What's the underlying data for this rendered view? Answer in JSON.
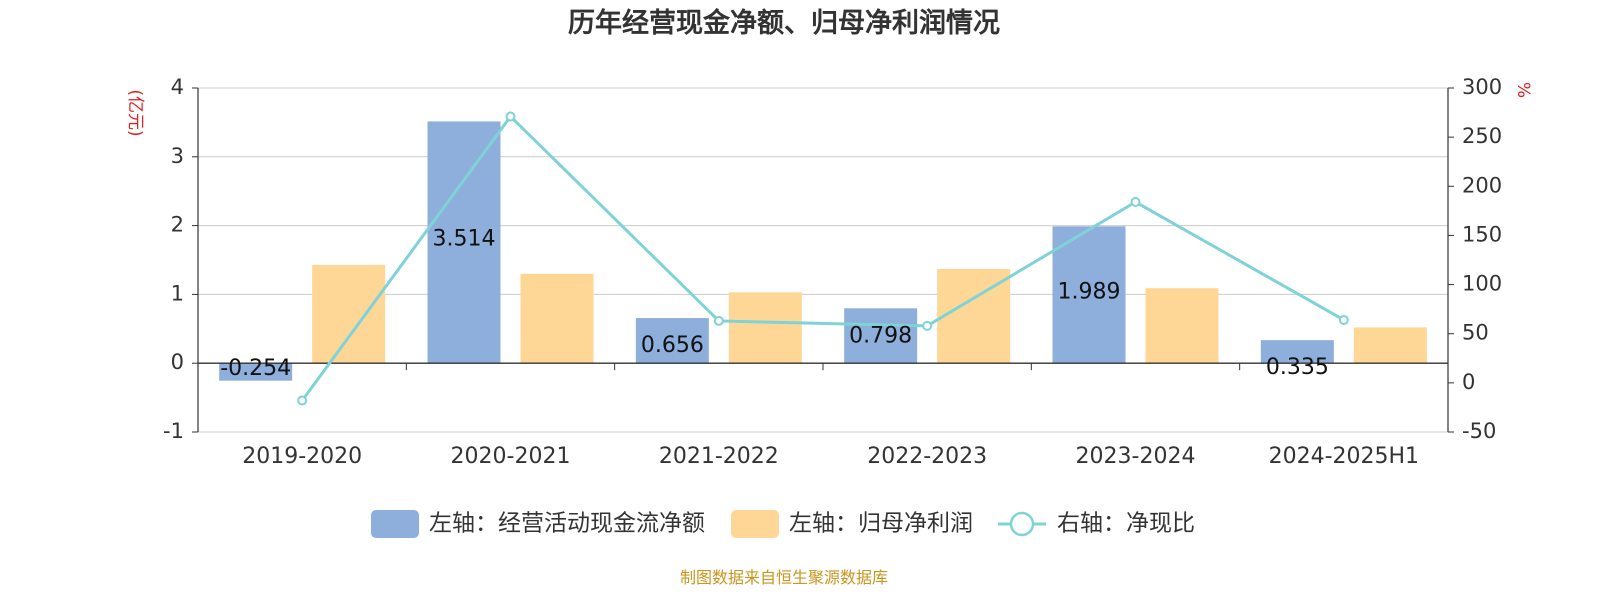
{
  "title": "历年经营现金净额、归母净利润情况",
  "source": "制图数据来自恒生聚源数据库",
  "colors": {
    "cashflow": "#8eaedb",
    "profit": "#fed797",
    "ratio": "#7fd3d7",
    "unit": "#e02020",
    "source": "#c8961e"
  },
  "chart_data": {
    "type": "bar",
    "title": "历年经营现金净额、归母净利润情况",
    "categories": [
      "2019-2020",
      "2020-2021",
      "2021-2022",
      "2022-2023",
      "2023-2024",
      "2024-2025H1"
    ],
    "left_axis": {
      "unit": "(亿元)",
      "ylim": [
        -1,
        4
      ],
      "ticks": [
        -1,
        0,
        1,
        2,
        3,
        4
      ]
    },
    "right_axis": {
      "unit": "%",
      "ylim": [
        -50,
        300
      ],
      "ticks": [
        -50,
        0,
        50,
        100,
        150,
        200,
        250,
        300
      ]
    },
    "series": [
      {
        "name": "左轴：经营活动现金流净额",
        "type": "bar",
        "axis": "left",
        "values": [
          -0.254,
          3.514,
          0.656,
          0.798,
          1.989,
          0.335
        ],
        "labels": [
          "-0.254",
          "3.514",
          "0.656",
          "0.798",
          "1.989",
          "0.335"
        ]
      },
      {
        "name": "左轴：归母净利润",
        "type": "bar",
        "axis": "left",
        "values": [
          1.43,
          1.3,
          1.03,
          1.37,
          1.09,
          0.52
        ]
      },
      {
        "name": "右轴：净现比",
        "type": "line",
        "axis": "right",
        "values": [
          -18,
          271,
          63,
          58,
          184,
          64
        ]
      }
    ],
    "grid": true,
    "legend_position": "bottom"
  }
}
